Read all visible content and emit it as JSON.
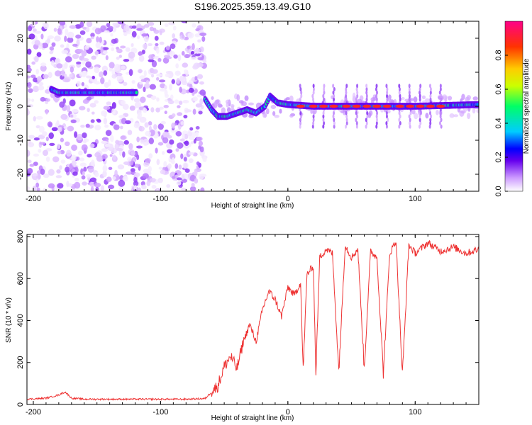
{
  "title": "S196.2025.359.13.49.G10",
  "chart_data": [
    {
      "type": "heatmap",
      "name": "spectrogram",
      "xlabel": "Height of straight line (km)",
      "ylabel": "Frequency (Hz)",
      "xlim": [
        -205,
        150
      ],
      "ylim": [
        -25,
        25
      ],
      "xticks": [
        -200,
        -100,
        0,
        100
      ],
      "yticks": [
        -20,
        -10,
        0,
        10,
        20
      ],
      "noise_region_x": [
        -205,
        -65
      ],
      "ridge": [
        {
          "x": -186,
          "y": 5
        },
        {
          "x": -180,
          "y": 4
        },
        {
          "x": -170,
          "y": 4
        },
        {
          "x": -160,
          "y": 4
        },
        {
          "x": -140,
          "y": 4
        },
        {
          "x": -130,
          "y": 4
        },
        {
          "x": -118,
          "y": 4
        },
        {
          "x": -65,
          "y": 2
        },
        {
          "x": -60,
          "y": -1
        },
        {
          "x": -55,
          "y": -3
        },
        {
          "x": -48,
          "y": -3
        },
        {
          "x": -40,
          "y": -2
        },
        {
          "x": -32,
          "y": -1
        },
        {
          "x": -25,
          "y": -2
        },
        {
          "x": -18,
          "y": 0
        },
        {
          "x": -14,
          "y": 3
        },
        {
          "x": -8,
          "y": 1
        },
        {
          "x": 0,
          "y": 0.5
        },
        {
          "x": 20,
          "y": 0
        },
        {
          "x": 60,
          "y": 0
        },
        {
          "x": 100,
          "y": 0
        },
        {
          "x": 150,
          "y": 0.5
        }
      ],
      "strong_peaks_x": [
        10,
        20,
        28,
        36,
        46,
        54,
        62,
        70,
        78,
        88,
        96,
        104,
        112,
        120
      ],
      "colorbar": {
        "label": "Normalized spectral amplitude",
        "range": [
          0,
          1
        ],
        "ticks": [
          0.0,
          0.2,
          0.4,
          0.6,
          0.8
        ],
        "tick_labels": [
          "0.0",
          "0.2",
          "0.4",
          "0.6",
          "0.8"
        ],
        "colors": [
          "#ffffff",
          "#cc99ff",
          "#6600ee",
          "#0000ff",
          "#00ccff",
          "#00ff66",
          "#ccff00",
          "#ffcc00",
          "#ff3300",
          "#ff0088"
        ]
      }
    },
    {
      "type": "line",
      "name": "snr",
      "xlabel": "Height of straight line (km)",
      "ylabel": "SNR (10 * v/v)",
      "xlim": [
        -205,
        150
      ],
      "ylim": [
        0,
        810
      ],
      "xticks": [
        -200,
        -100,
        0,
        100
      ],
      "yticks": [
        0,
        200,
        400,
        600,
        800
      ],
      "line_color": "#ee3333",
      "series": [
        {
          "name": "SNR",
          "x": [
            -205,
            -190,
            -180,
            -175,
            -170,
            -160,
            -140,
            -120,
            -100,
            -80,
            -65,
            -55,
            -50,
            -45,
            -40,
            -35,
            -30,
            -25,
            -20,
            -15,
            -10,
            -5,
            0,
            5,
            10,
            12,
            15,
            20,
            22,
            25,
            30,
            35,
            40,
            45,
            50,
            55,
            60,
            65,
            70,
            75,
            80,
            85,
            90,
            95,
            100,
            110,
            120,
            130,
            140,
            150
          ],
          "values": [
            25,
            30,
            45,
            60,
            30,
            25,
            25,
            25,
            25,
            25,
            28,
            90,
            180,
            230,
            170,
            300,
            380,
            300,
            450,
            540,
            500,
            420,
            560,
            520,
            580,
            160,
            620,
            660,
            150,
            700,
            740,
            720,
            160,
            760,
            700,
            740,
            170,
            730,
            700,
            150,
            720,
            780,
            140,
            760,
            720,
            770,
            730,
            750,
            720,
            740
          ]
        }
      ]
    }
  ]
}
